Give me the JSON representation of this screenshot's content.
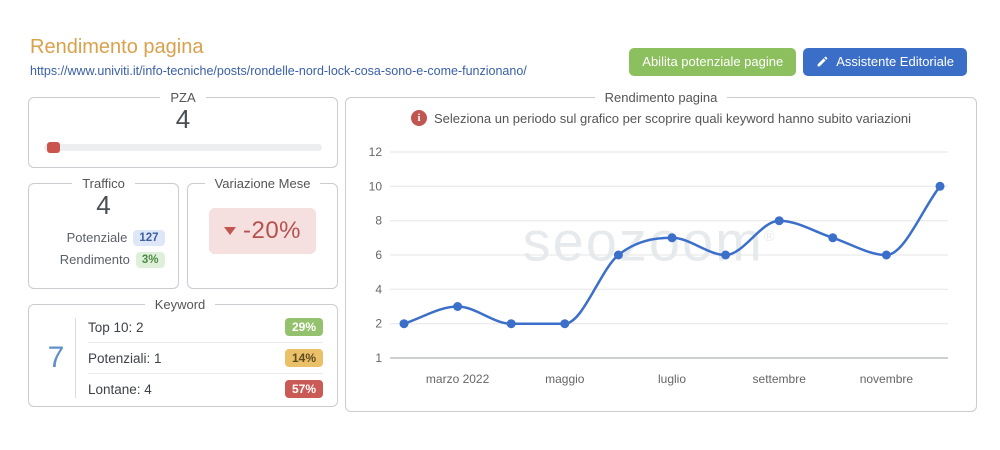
{
  "page": {
    "title": "Rendimento pagina",
    "url": "https://www.univiti.it/info-tecniche/posts/rondelle-nord-lock-cosa-sono-e-come-funzionano/"
  },
  "actions": {
    "enable_potential": "Abilita potenziale pagine",
    "editorial_assistant": "Assistente Editoriale"
  },
  "pza": {
    "box_title": "PZA",
    "value": "4",
    "slider_percent": 1,
    "thumb_color": "#c9544d"
  },
  "traffico": {
    "box_title": "Traffico",
    "value": "4",
    "potential_label": "Potenziale",
    "potential_value": "127",
    "yield_label": "Rendimento",
    "yield_value": "3%"
  },
  "variazione": {
    "box_title": "Variazione Mese",
    "value": "-20%"
  },
  "keyword": {
    "box_title": "Keyword",
    "total": "7",
    "rows": [
      {
        "label": "Top 10: 2",
        "percent": "29%",
        "badge_bg": "#94c16d",
        "badge_fg": "#ffffff"
      },
      {
        "label": "Potenziali: 1",
        "percent": "14%",
        "badge_bg": "#eac168",
        "badge_fg": "#5d4a1f"
      },
      {
        "label": "Lontane: 4",
        "percent": "57%",
        "badge_bg": "#ca5a55",
        "badge_fg": "#ffffff"
      }
    ]
  },
  "chart_box": {
    "box_title": "Rendimento pagina",
    "note": "Seleziona un periodo sul grafico per scoprire quali keyword hanno subito variazioni",
    "watermark": "seozoom",
    "watermark_mark": "®"
  },
  "chart_data": {
    "type": "line",
    "title": "Rendimento pagina",
    "values": [
      2,
      3,
      2,
      2,
      6,
      7,
      6,
      8,
      7,
      6,
      10
    ],
    "x_tick_labels": [
      {
        "index": 1,
        "label": "marzo 2022"
      },
      {
        "index": 3,
        "label": "maggio"
      },
      {
        "index": 5,
        "label": "luglio"
      },
      {
        "index": 7,
        "label": "settembre"
      },
      {
        "index": 9,
        "label": "novembre"
      }
    ],
    "y_ticks": [
      1,
      2,
      4,
      6,
      8,
      10,
      12
    ],
    "ylim": [
      1,
      12
    ],
    "xlabel": "",
    "ylabel": "",
    "grid": true,
    "legend": "none",
    "line_color": "#3b6fc9",
    "marker_color": "#3b6fc9",
    "grid_color": "#e6e6e6",
    "baseline_color": "#9aa0a6"
  }
}
